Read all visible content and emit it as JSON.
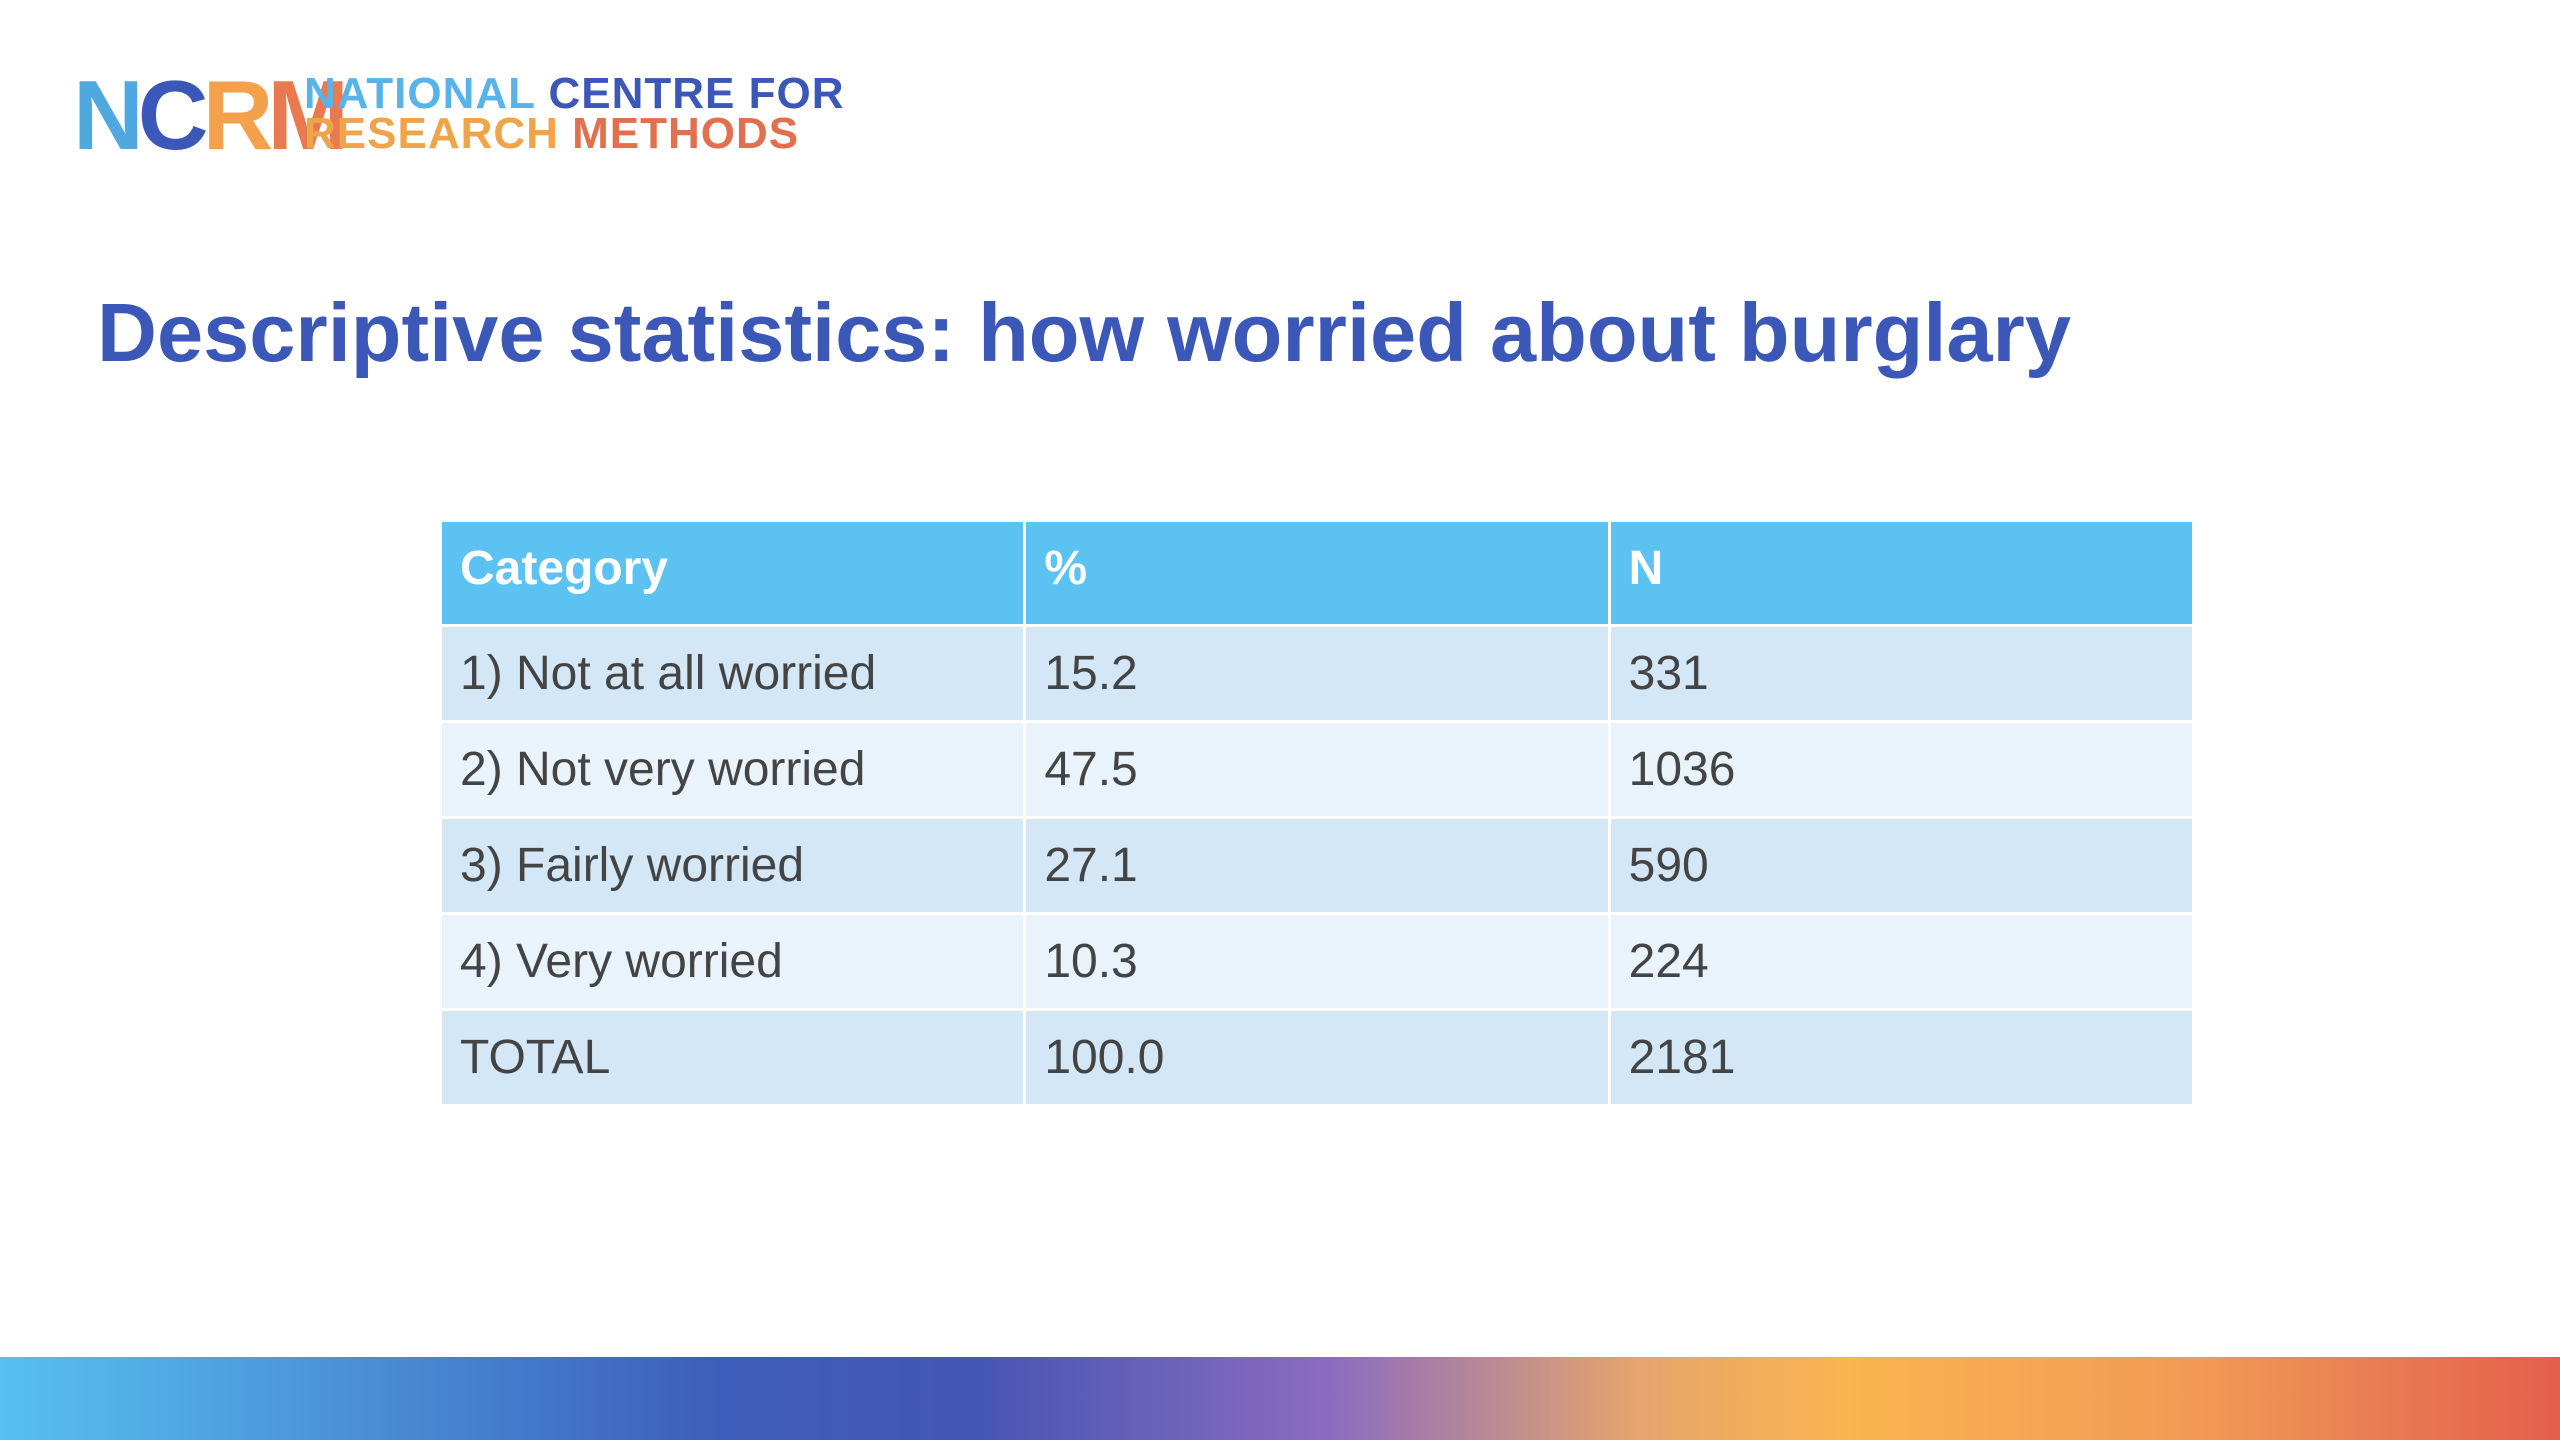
{
  "logo": {
    "letters": [
      "N",
      "C",
      "R",
      "M"
    ],
    "line1": [
      "NATIONAL",
      "CENTRE FOR"
    ],
    "line2": [
      "RESEARCH",
      "METHODS"
    ]
  },
  "title": "Descriptive statistics: how worried about burglary",
  "table": {
    "header": [
      "Category",
      "%",
      "N"
    ],
    "rows": [
      [
        "1) Not at all worried",
        "15.2",
        "331"
      ],
      [
        "2) Not very worried",
        "47.5",
        "1036"
      ],
      [
        "3) Fairly worried",
        "27.1",
        "590"
      ],
      [
        "4) Very worried",
        "10.3",
        "224"
      ],
      [
        "TOTAL",
        "100.0",
        "2181"
      ]
    ]
  }
}
